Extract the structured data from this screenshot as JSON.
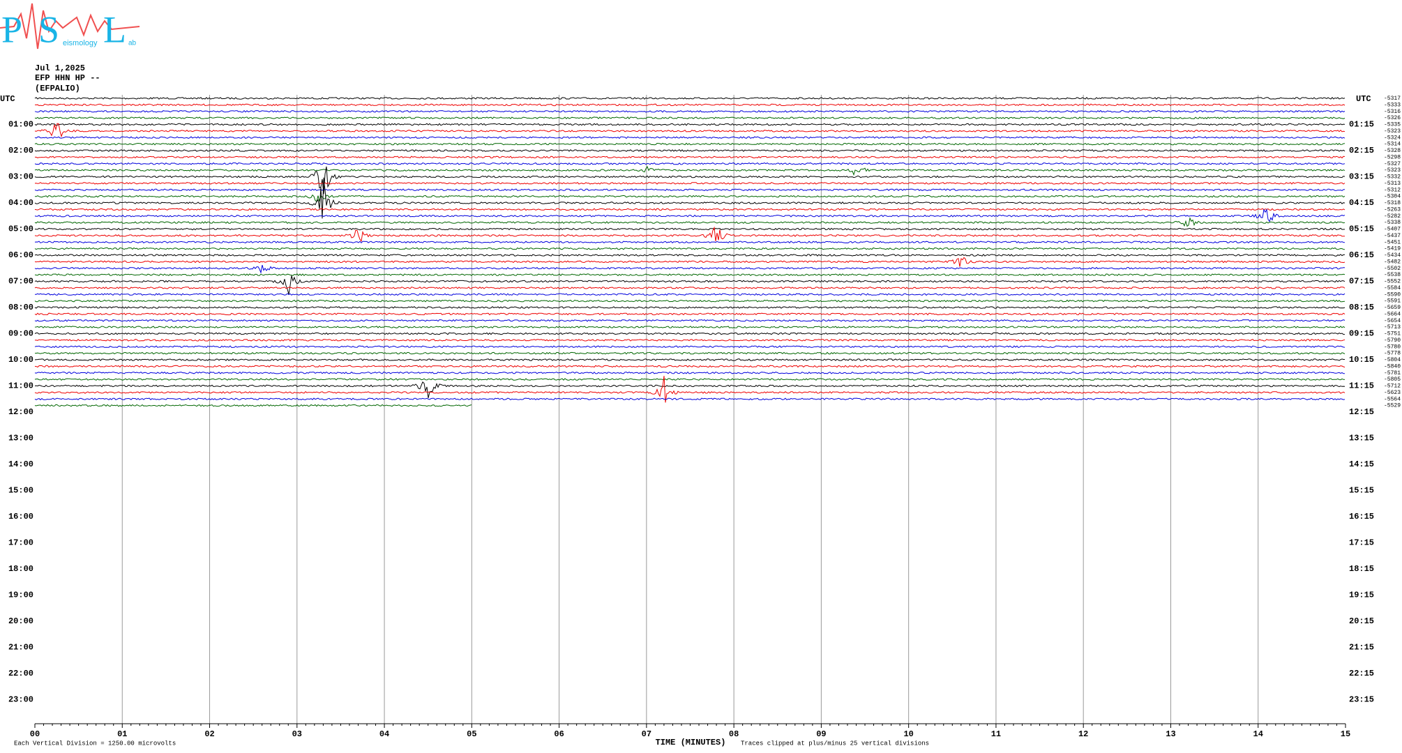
{
  "logo": {
    "letters": [
      "P",
      "S",
      "L"
    ],
    "words": [
      "eismology",
      "ab"
    ]
  },
  "header": {
    "date": "Jul 1,2025",
    "channel": "EFP HHN HP --",
    "station": "(EFPALIO)"
  },
  "left_axis": {
    "title": "UTC",
    "labels": [
      "01:00",
      "02:00",
      "03:00",
      "04:00",
      "05:00",
      "06:00",
      "07:00",
      "08:00",
      "09:00",
      "10:00",
      "11:00",
      "12:00",
      "13:00",
      "14:00",
      "15:00",
      "16:00",
      "17:00",
      "18:00",
      "19:00",
      "20:00",
      "21:00",
      "22:00",
      "23:00"
    ]
  },
  "right_axis": {
    "title": "UTC",
    "labels": [
      "01:15",
      "02:15",
      "03:15",
      "04:15",
      "05:15",
      "06:15",
      "07:15",
      "08:15",
      "09:15",
      "10:15",
      "11:15",
      "12:15",
      "13:15",
      "14:15",
      "15:15",
      "16:15",
      "17:15",
      "18:15",
      "19:15",
      "20:15",
      "21:15",
      "22:15",
      "23:15"
    ]
  },
  "trace_offsets": [
    "-5317",
    "-5333",
    "-5316",
    "-5326",
    "-5335",
    "-5323",
    "-5324",
    "-5314",
    "-5328",
    "-5298",
    "-5327",
    "-5323",
    "-5332",
    "-5313",
    "-5312",
    "-5304",
    "-5318",
    "-5263",
    "-5282",
    "-5338",
    "-5407",
    "-5437",
    "-5451",
    "-5419",
    "-5434",
    "-5482",
    "-5502",
    "-5538",
    "-5552",
    "-5584",
    "-5590",
    "-5591",
    "-5659",
    "-5664",
    "-5654",
    "-5713",
    "-5751",
    "-5790",
    "-5780",
    "-5778",
    "-5804",
    "-5840",
    "-5781",
    "-5805",
    "-5712",
    "-5623",
    "-5564",
    "-5529"
  ],
  "x_axis": {
    "title": "TIME (MINUTES)",
    "ticks": [
      "00",
      "01",
      "02",
      "03",
      "04",
      "05",
      "06",
      "07",
      "08",
      "09",
      "10",
      "11",
      "12",
      "13",
      "14",
      "15"
    ]
  },
  "footer": {
    "scale_note": "Each Vertical Division = 1250.00 microvolts",
    "clip_note": "Traces clipped at plus/minus 25 vertical divisions"
  }
}
